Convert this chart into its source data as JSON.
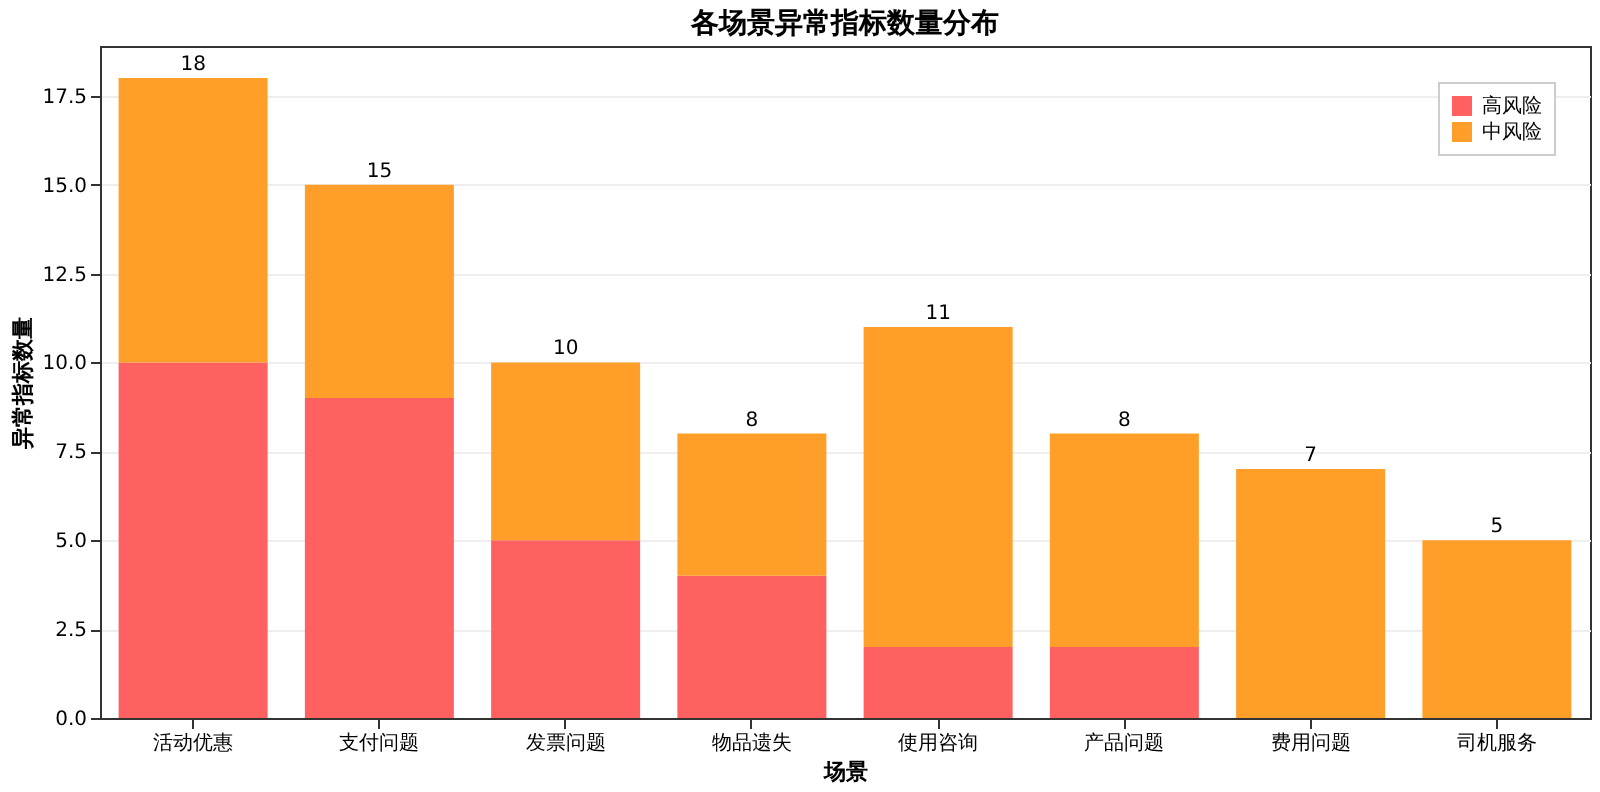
{
  "chart_data": {
    "type": "bar",
    "title": "各场景异常指标数量分布",
    "xlabel": "场景",
    "ylabel": "异常指标数量",
    "categories": [
      "活动优惠",
      "支付问题",
      "发票问题",
      "物品遗失",
      "使用咨询",
      "产品问题",
      "费用问题",
      "司机服务"
    ],
    "stacked": true,
    "series": [
      {
        "name": "高风险",
        "color": "#ff6060",
        "values": [
          10,
          9,
          5,
          4,
          2,
          2,
          0,
          0
        ]
      },
      {
        "name": "中风险",
        "color": "#ff9f2a",
        "values": [
          8,
          6,
          5,
          4,
          9,
          6,
          7,
          5
        ]
      }
    ],
    "totals": [
      "18",
      "15",
      "10",
      "8",
      "11",
      "8",
      "7",
      "5"
    ],
    "ylim": [
      0,
      18.9
    ],
    "yticks": [
      {
        "value": 0,
        "label": "0.0"
      },
      {
        "value": 2.5,
        "label": "2.5"
      },
      {
        "value": 5,
        "label": "5.0"
      },
      {
        "value": 7.5,
        "label": "7.5"
      },
      {
        "value": 10,
        "label": "10.0"
      },
      {
        "value": 12.5,
        "label": "12.5"
      },
      {
        "value": 15,
        "label": "15.0"
      },
      {
        "value": 17.5,
        "label": "17.5"
      }
    ],
    "grid": "y",
    "legend": "top right"
  }
}
